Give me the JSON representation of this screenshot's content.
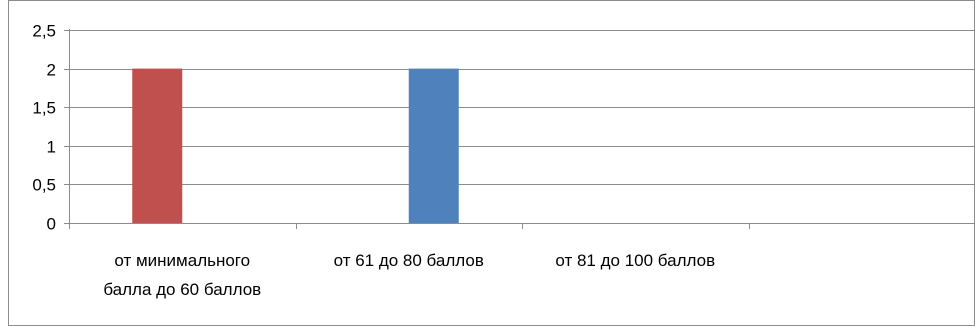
{
  "chart_data": {
    "type": "bar",
    "categories": [
      [
        "от минимального",
        "балла до 60 баллов"
      ],
      [
        "от 61 до 80 баллов"
      ],
      [
        "от 81 до 100 баллов"
      ],
      [
        ""
      ]
    ],
    "series": [
      {
        "values": [
          2,
          0,
          0,
          0
        ],
        "color": "#c0504d"
      },
      {
        "values": [
          0,
          2,
          0,
          0
        ],
        "color": "#4f81bd"
      }
    ],
    "yticks": [
      "0",
      "0,5",
      "1",
      "1,5",
      "2",
      "2,5"
    ],
    "ylim": [
      0,
      2.5
    ],
    "grid": true,
    "legend": "none"
  }
}
